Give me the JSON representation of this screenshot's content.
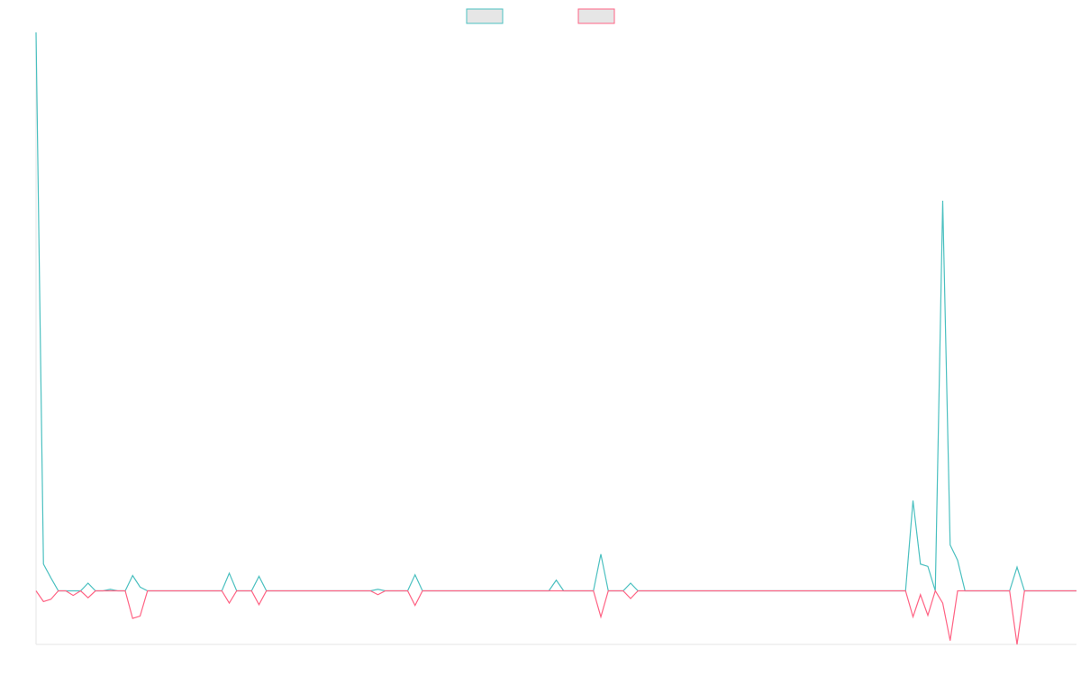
{
  "chart_data": {
    "type": "line",
    "title": "",
    "xlabel": "",
    "ylabel": "",
    "grid": false,
    "legend_position": "top",
    "ylim": [
      -7,
      73
    ],
    "series": [
      {
        "color": "#4bc0c0",
        "values": [
          73,
          3.5,
          1.7,
          0,
          0,
          0,
          0,
          1,
          0,
          0,
          0.2,
          0,
          0,
          2,
          0.5,
          0,
          0,
          0,
          0,
          0,
          0,
          0,
          0,
          0,
          0,
          0,
          2.3,
          0,
          0,
          0,
          1.9,
          0,
          0,
          0,
          0,
          0,
          0,
          0,
          0,
          0,
          0,
          0,
          0,
          0,
          0,
          0,
          0.2,
          0,
          0,
          0,
          0,
          2.1,
          0,
          0,
          0,
          0,
          0,
          0,
          0,
          0,
          0,
          0,
          0,
          0,
          0,
          0,
          0,
          0,
          0,
          0,
          1.4,
          0,
          0,
          0,
          0,
          0,
          4.8,
          0,
          0,
          0,
          1,
          0,
          0,
          0,
          0,
          0,
          0,
          0,
          0,
          0,
          0,
          0,
          0,
          0,
          0,
          0,
          0,
          0,
          0,
          0,
          0,
          0,
          0,
          0,
          0,
          0,
          0,
          0,
          0,
          0,
          0,
          0,
          0,
          0,
          0,
          0,
          0,
          0,
          11.8,
          3.5,
          3.2,
          0,
          51,
          6,
          4,
          0,
          0,
          0,
          0,
          0,
          0,
          0,
          3.1,
          0,
          0,
          0,
          0,
          0,
          0,
          0,
          0
        ]
      },
      {
        "color": "#ff6384",
        "values": [
          0,
          -1.4,
          -1.1,
          0,
          0,
          -0.6,
          0,
          -0.9,
          0,
          0,
          0,
          0,
          0,
          -3.6,
          -3.3,
          0,
          0,
          0,
          0,
          0,
          0,
          0,
          0,
          0,
          0,
          0,
          -1.6,
          0,
          0,
          0,
          -1.8,
          0,
          0,
          0,
          0,
          0,
          0,
          0,
          0,
          0,
          0,
          0,
          0,
          0,
          0,
          0,
          -0.5,
          0,
          0,
          0,
          0,
          -1.9,
          0,
          0,
          0,
          0,
          0,
          0,
          0,
          0,
          0,
          0,
          0,
          0,
          0,
          0,
          0,
          0,
          0,
          0,
          0,
          0,
          0,
          0,
          0,
          0,
          -3.4,
          0,
          0,
          0,
          -1,
          0,
          0,
          0,
          0,
          0,
          0,
          0,
          0,
          0,
          0,
          0,
          0,
          0,
          0,
          0,
          0,
          0,
          0,
          0,
          0,
          0,
          0,
          0,
          0,
          0,
          0,
          0,
          0,
          0,
          0,
          0,
          0,
          0,
          0,
          0,
          0,
          0,
          -3.4,
          -0.5,
          -3.2,
          0,
          -1.6,
          -6.5,
          0,
          0,
          0,
          0,
          0,
          0,
          0,
          0,
          -7,
          0,
          0,
          0,
          0,
          0,
          0,
          0,
          0
        ]
      }
    ]
  }
}
